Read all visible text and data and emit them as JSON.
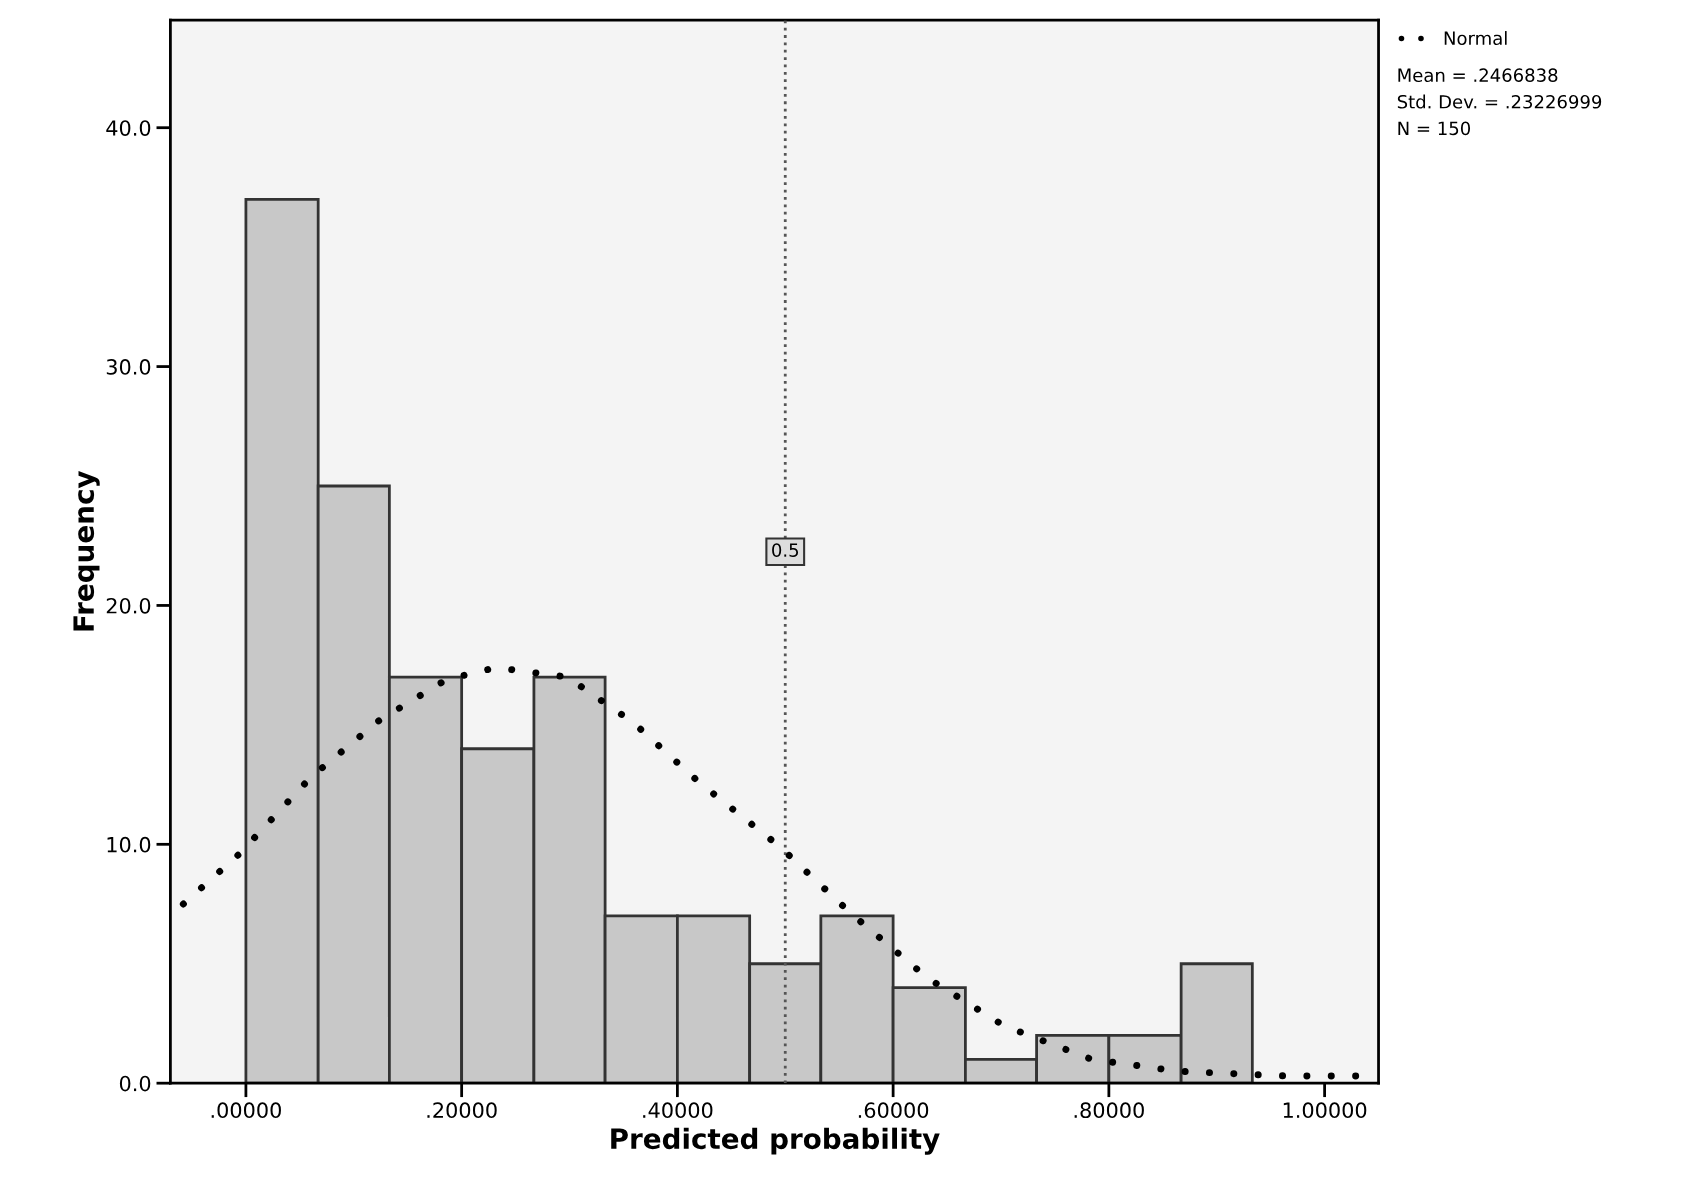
{
  "chart_data": {
    "type": "histogram",
    "xlabel": "Predicted probability",
    "ylabel": "Frequency",
    "series": [
      {
        "type": "histogram",
        "color": "#c8c8c8",
        "bins": [
          0,
          0.067,
          0.133,
          0.2,
          0.267,
          0.333,
          0.4,
          0.467,
          0.533,
          0.6,
          0.667,
          0.733,
          0.8,
          0.867,
          0.933
        ],
        "values": [
          37,
          25,
          17,
          14,
          17,
          7,
          7,
          5,
          7,
          4,
          1,
          2,
          2,
          5
        ]
      },
      {
        "type": "line",
        "name": "Normal",
        "color": "#000000",
        "line_style": "dotted",
        "x": [
          -0.058,
          -0.006,
          0.06,
          0.124,
          0.186,
          0.232,
          0.298,
          0.359,
          0.42,
          0.495,
          0.561,
          0.632,
          0.703,
          0.784,
          0.864,
          0.965,
          1.046
        ],
        "values": [
          7.5,
          9.6,
          12.8,
          15.2,
          16.9,
          17.4,
          17.0,
          15.1,
          12.6,
          9.9,
          7.1,
          4.4,
          2.4,
          1.0,
          0.5,
          0.3,
          0.3
        ]
      }
    ],
    "xlim": [
      -0.07,
      1.05
    ],
    "ylim": [
      0,
      44.5
    ],
    "xticks": [
      {
        "value": 0,
        "label": ".00000"
      },
      {
        "value": 0.2,
        "label": ".20000"
      },
      {
        "value": 0.4,
        "label": ".40000"
      },
      {
        "value": 0.6,
        "label": ".60000"
      },
      {
        "value": 0.8,
        "label": ".80000"
      },
      {
        "value": 1.0,
        "label": "1.00000"
      }
    ],
    "yticks": [
      {
        "value": 0,
        "label": "0.0"
      },
      {
        "value": 10,
        "label": "10.0"
      },
      {
        "value": 20,
        "label": "20.0"
      },
      {
        "value": 30,
        "label": "30.0"
      },
      {
        "value": 40,
        "label": "40.0"
      }
    ],
    "ref_lines": [
      {
        "axis": "x",
        "value": 0.5,
        "label": "0.5",
        "line_style": "dotted",
        "color": "#555555"
      }
    ],
    "annotations": [
      "Mean = .2466838",
      "Std. Dev. = .23226999",
      "N = 150"
    ],
    "legend": "top right",
    "grid": false
  }
}
